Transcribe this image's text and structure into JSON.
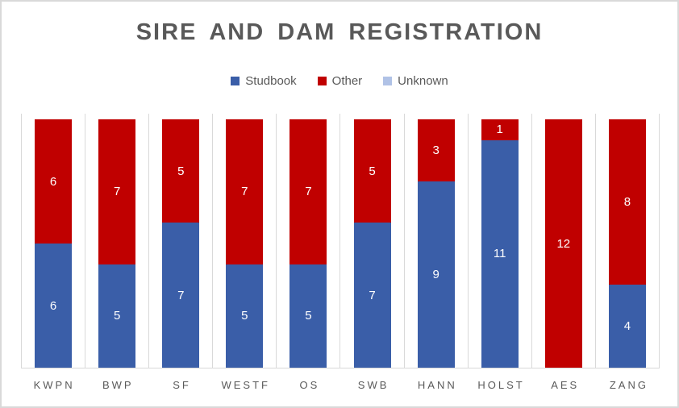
{
  "chart": {
    "title": "SIRE AND DAM REGISTRATION",
    "colors": {
      "studbook_blue": "#3A5EA8",
      "other_red": "#C00000",
      "unknown_lightblue": "#B0C2E6",
      "text_gray": "#595959",
      "gridline_gray": "#D9D9D9",
      "data_label_white": "#FFFFFF"
    }
  },
  "chart_data": {
    "type": "bar",
    "stacked": true,
    "title": "SIRE AND DAM REGISTRATION",
    "categories": [
      "KWPN",
      "BWP",
      "SF",
      "WESTF",
      "OS",
      "SWB",
      "HANN",
      "HOLST",
      "AES",
      "ZANG"
    ],
    "series": [
      {
        "name": "Studbook",
        "color": "#3A5EA8",
        "values": [
          6,
          5,
          7,
          5,
          5,
          7,
          9,
          11,
          0,
          4
        ]
      },
      {
        "name": "Other",
        "color": "#C00000",
        "values": [
          6,
          7,
          5,
          7,
          7,
          5,
          3,
          1,
          12,
          8
        ]
      },
      {
        "name": "Unknown",
        "color": "#B0C2E6",
        "values": [
          0,
          0,
          0,
          0,
          0,
          0,
          0,
          0,
          0,
          0
        ]
      }
    ],
    "xlabel": "",
    "ylabel": "",
    "ylim": [
      0,
      12
    ],
    "legend_position": "top",
    "grid": "vertical category separators only",
    "data_labels": "white numbers centered in each segment"
  }
}
